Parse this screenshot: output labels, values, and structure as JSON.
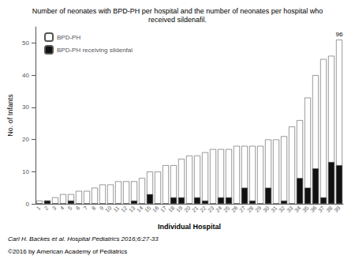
{
  "chart_data": {
    "type": "bar",
    "title": "Number of neonates with BPD-PH per hospital and the number of neonates per hospital who\nreceived sildenafil.",
    "xlabel": "Individual Hospital",
    "ylabel": "No. of Infants",
    "categories": [
      "1",
      "2",
      "3",
      "4",
      "5",
      "6",
      "7",
      "8",
      "9",
      "10",
      "11",
      "12",
      "13",
      "14",
      "15",
      "16",
      "17",
      "18",
      "19",
      "20",
      "21",
      "22",
      "23",
      "24",
      "25",
      "26",
      "27",
      "28",
      "29",
      "30",
      "31",
      "32",
      "33",
      "34",
      "35",
      "36",
      "37",
      "38",
      "39"
    ],
    "series": [
      {
        "name": "BPD-PH",
        "color": "#ffffff",
        "values": [
          1,
          1,
          2,
          3,
          3,
          4,
          4,
          5,
          6,
          6,
          7,
          7,
          7,
          8,
          10,
          10,
          12,
          12,
          14,
          15,
          15,
          16,
          17,
          17,
          17,
          18,
          18,
          18,
          18,
          20,
          20,
          21,
          24,
          26,
          33,
          40,
          45,
          46,
          51
        ]
      },
      {
        "name": "BPD-PH receiving sildenfal",
        "color": "#111111",
        "values": [
          0,
          1,
          0,
          0,
          1,
          0,
          0,
          0,
          0,
          0,
          0,
          0,
          1,
          0,
          3,
          0,
          0,
          2,
          2,
          0,
          2,
          1,
          0,
          2,
          2,
          0,
          5,
          1,
          0,
          5,
          0,
          1,
          0,
          8,
          5,
          11,
          2,
          13,
          12
        ]
      }
    ],
    "stacked": false,
    "ylim": [
      0,
      55
    ],
    "yticks": [
      0,
      10,
      20,
      30,
      40,
      50
    ],
    "grid": false,
    "legend": "upper left",
    "annotations": [
      {
        "text": "96",
        "category": "39"
      }
    ],
    "footnote": "Carl H. Backes et al. Hospital Pediatrics 2016;6:27-33",
    "copyright": "©2016 by American Academy of Pediatrics"
  }
}
